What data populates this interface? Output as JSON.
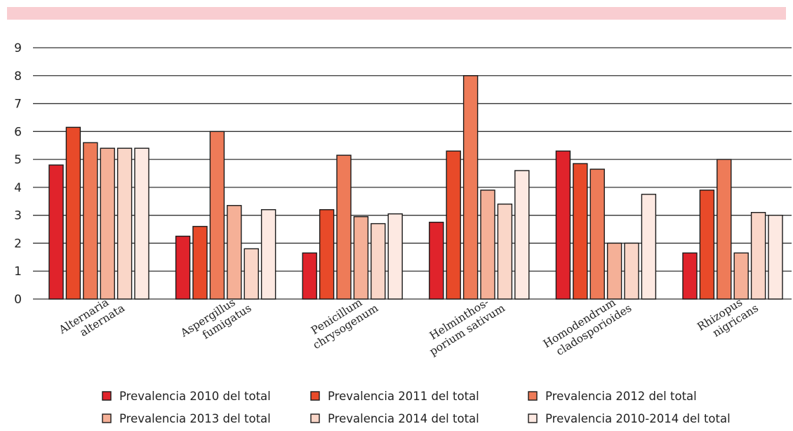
{
  "colors": {
    "top_bar": "#f9cdd1",
    "grid": "#333333",
    "bar_stroke": "#1a1a1a"
  },
  "chart_data": {
    "type": "bar",
    "title": "",
    "xlabel": "",
    "ylabel": "",
    "ylim": [
      0,
      9
    ],
    "yticks": [
      0,
      1,
      2,
      3,
      4,
      5,
      6,
      7,
      8,
      9
    ],
    "grid": true,
    "legend_position": "bottom",
    "categories": [
      [
        "Alternaria",
        "alternata"
      ],
      [
        "Aspergillus",
        "fumigatus"
      ],
      [
        "Penicillum",
        "chrysogenum"
      ],
      [
        "Helminthos-",
        "porium sativum"
      ],
      [
        "Homodendrum",
        "cladosporioides"
      ],
      [
        "Rhizopus",
        "nigricans"
      ]
    ],
    "series": [
      {
        "name": "Prevalencia 2010 del total",
        "color": "#e0232b",
        "values": [
          4.8,
          2.25,
          1.65,
          2.75,
          5.3,
          1.65
        ]
      },
      {
        "name": "Prevalencia 2011 del total",
        "color": "#e84a29",
        "values": [
          6.15,
          2.6,
          3.2,
          5.3,
          4.85,
          3.9
        ]
      },
      {
        "name": "Prevalencia 2012 del total",
        "color": "#ee7b58",
        "values": [
          5.6,
          6.0,
          5.15,
          8.0,
          4.65,
          5.0
        ]
      },
      {
        "name": "Prevalencia 2013 del total",
        "color": "#f5b097",
        "values": [
          5.4,
          3.35,
          2.95,
          3.9,
          2.0,
          1.65
        ]
      },
      {
        "name": "Prevalencia 2014 del total",
        "color": "#fad6c8",
        "values": [
          5.4,
          1.8,
          2.7,
          3.4,
          2.0,
          3.1
        ]
      },
      {
        "name": "Prevalencia 2010-2014 del total",
        "color": "#fde9e2",
        "values": [
          5.4,
          3.2,
          3.05,
          4.6,
          3.75,
          3.0
        ]
      }
    ]
  }
}
